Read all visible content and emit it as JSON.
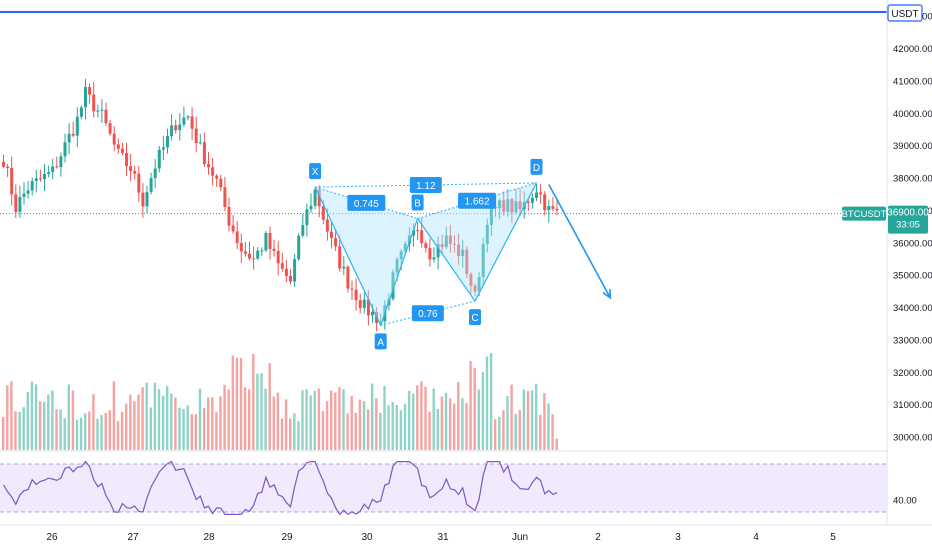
{
  "chart_data": {
    "type": "candlestick",
    "symbol": "BTCUSDT",
    "currency_badge": "USDT",
    "last_price": "36900.00",
    "countdown": "33:05",
    "price_axis": {
      "ticks": [
        "42000.00",
        "41000.00",
        "40000.00",
        "39000.00",
        "38000.00",
        "37000.00",
        "36000.00",
        "35000.00",
        "34000.00",
        "33000.00",
        "32000.00",
        "31000.00",
        "30000.00"
      ],
      "top_partial": "43000.00",
      "range": [
        29600,
        43500
      ]
    },
    "rsi_axis": {
      "ticks": [
        "40.00"
      ],
      "range": [
        20,
        80
      ],
      "band": [
        30,
        70
      ]
    },
    "date_axis": {
      "labels": [
        "26",
        "27",
        "28",
        "29",
        "30",
        "31",
        "Jun",
        "2",
        "3",
        "4",
        "5"
      ]
    },
    "volume_range": [
      0,
      3000
    ],
    "harmonic": {
      "points": [
        {
          "label": "X",
          "bar": 76,
          "price": 37720
        },
        {
          "label": "A",
          "bar": 92,
          "price": 33450
        },
        {
          "label": "B",
          "bar": 101,
          "price": 36750
        },
        {
          "label": "C",
          "bar": 115,
          "price": 34200
        },
        {
          "label": "D",
          "bar": 130,
          "price": 37850
        }
      ],
      "ratios": [
        {
          "label": "0.745",
          "between": [
            "X",
            "B"
          ]
        },
        {
          "label": "1.12",
          "between": [
            "X",
            "D"
          ]
        },
        {
          "label": "0.76",
          "between": [
            "A",
            "C"
          ]
        },
        {
          "label": "1.662",
          "between": [
            "B",
            "D"
          ]
        }
      ]
    },
    "projection": {
      "from": {
        "bar": 133,
        "price": 37800
      },
      "to": {
        "bar": 148,
        "price": 34300
      }
    },
    "candles_seed": 7
  }
}
